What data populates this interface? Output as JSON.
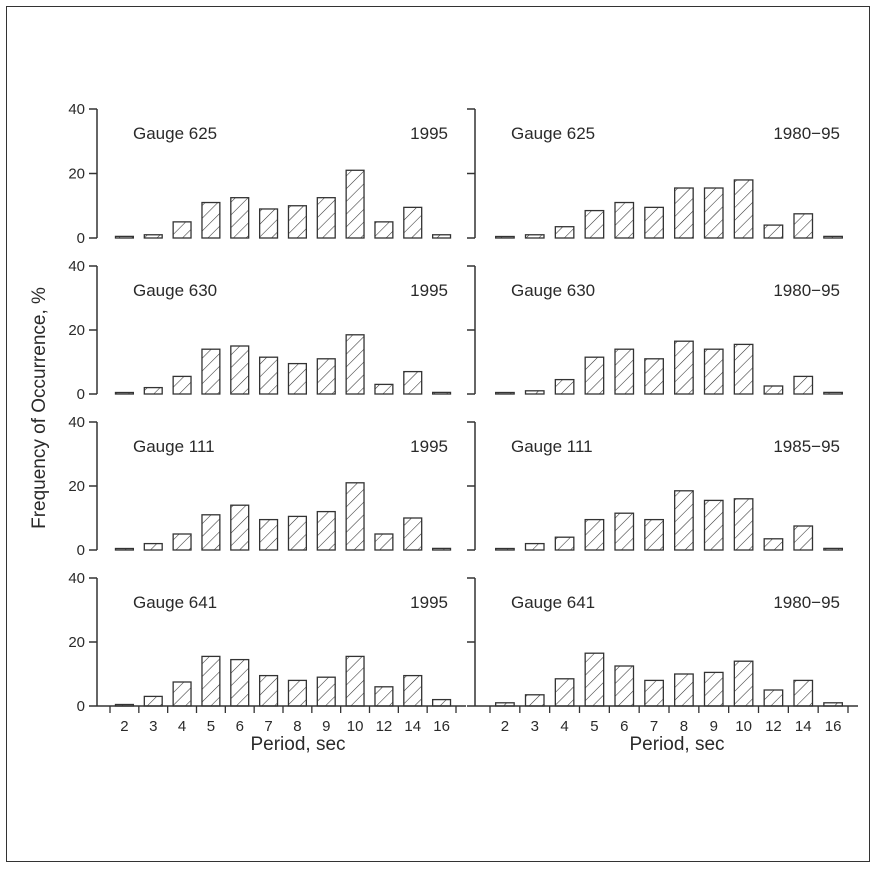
{
  "figure": {
    "ylabel": "Frequency of Occurrence, %",
    "xlabel": "Period, sec"
  },
  "chart_data": [
    {
      "type": "bar",
      "title": "Gauge 625",
      "period": "1995",
      "categories": [
        "2",
        "3",
        "4",
        "5",
        "6",
        "7",
        "8",
        "9",
        "10",
        "12",
        "14",
        "16"
      ],
      "values": [
        0.5,
        1,
        5,
        11,
        12.5,
        9,
        10,
        12.5,
        21,
        5,
        9.5,
        1
      ],
      "ylim": [
        0,
        40
      ],
      "yticks": [
        "0",
        "20",
        "40"
      ],
      "grid": false
    },
    {
      "type": "bar",
      "title": "Gauge 625",
      "period": "1980−95",
      "categories": [
        "2",
        "3",
        "4",
        "5",
        "6",
        "7",
        "8",
        "9",
        "10",
        "12",
        "14",
        "16"
      ],
      "values": [
        0.2,
        1,
        3.5,
        8.5,
        11,
        9.5,
        15.5,
        15.5,
        18,
        4,
        7.5,
        0.5
      ],
      "ylim": [
        0,
        40
      ],
      "yticks": [
        "0",
        "20",
        "40"
      ],
      "grid": false
    },
    {
      "type": "bar",
      "title": "Gauge 630",
      "period": "1995",
      "categories": [
        "2",
        "3",
        "4",
        "5",
        "6",
        "7",
        "8",
        "9",
        "10",
        "12",
        "14",
        "16"
      ],
      "values": [
        0.3,
        2,
        5.5,
        14,
        15,
        11.5,
        9.5,
        11,
        18.5,
        3,
        7,
        0.5
      ],
      "ylim": [
        0,
        40
      ],
      "yticks": [
        "0",
        "20",
        "40"
      ],
      "grid": false
    },
    {
      "type": "bar",
      "title": "Gauge 630",
      "period": "1980−95",
      "categories": [
        "2",
        "3",
        "4",
        "5",
        "6",
        "7",
        "8",
        "9",
        "10",
        "12",
        "14",
        "16"
      ],
      "values": [
        0.3,
        1,
        4.5,
        11.5,
        14,
        11,
        16.5,
        14,
        15.5,
        2.5,
        5.5,
        0.5
      ],
      "ylim": [
        0,
        40
      ],
      "yticks": [
        "0",
        "20",
        "40"
      ],
      "grid": false
    },
    {
      "type": "bar",
      "title": "Gauge 111",
      "period": "1995",
      "categories": [
        "2",
        "3",
        "4",
        "5",
        "6",
        "7",
        "8",
        "9",
        "10",
        "12",
        "14",
        "16"
      ],
      "values": [
        0.2,
        2,
        5,
        11,
        14,
        9.5,
        10.5,
        12,
        21,
        5,
        10,
        0.5
      ],
      "ylim": [
        0,
        40
      ],
      "yticks": [
        "0",
        "20",
        "40"
      ],
      "grid": false
    },
    {
      "type": "bar",
      "title": "Gauge 111",
      "period": "1985−95",
      "categories": [
        "2",
        "3",
        "4",
        "5",
        "6",
        "7",
        "8",
        "9",
        "10",
        "12",
        "14",
        "16"
      ],
      "values": [
        0.2,
        2,
        4,
        9.5,
        11.5,
        9.5,
        18.5,
        15.5,
        16,
        3.5,
        7.5,
        0.5
      ],
      "ylim": [
        0,
        40
      ],
      "yticks": [
        "0",
        "20",
        "40"
      ],
      "grid": false
    },
    {
      "type": "bar",
      "title": "Gauge 641",
      "period": "1995",
      "categories": [
        "2",
        "3",
        "4",
        "5",
        "6",
        "7",
        "8",
        "9",
        "10",
        "12",
        "14",
        "16"
      ],
      "values": [
        0.3,
        3,
        7.5,
        15.5,
        14.5,
        9.5,
        8,
        9,
        15.5,
        6,
        9.5,
        2
      ],
      "ylim": [
        0,
        40
      ],
      "yticks": [
        "0",
        "20",
        "40"
      ],
      "grid": false
    },
    {
      "type": "bar",
      "title": "Gauge 641",
      "period": "1980−95",
      "categories": [
        "2",
        "3",
        "4",
        "5",
        "6",
        "7",
        "8",
        "9",
        "10",
        "12",
        "14",
        "16"
      ],
      "values": [
        1,
        3.5,
        8.5,
        16.5,
        12.5,
        8,
        10,
        10.5,
        14,
        5,
        8,
        1
      ],
      "ylim": [
        0,
        40
      ],
      "yticks": [
        "0",
        "20",
        "40"
      ],
      "grid": false
    }
  ]
}
